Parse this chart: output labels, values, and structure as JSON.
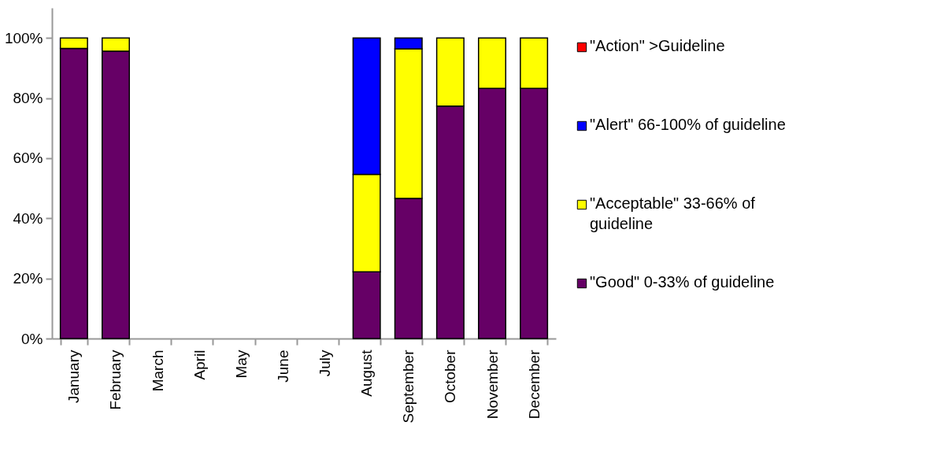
{
  "chart_data": {
    "type": "bar",
    "stacked": true,
    "categories": [
      "January",
      "February",
      "March",
      "April",
      "May",
      "June",
      "July",
      "August",
      "September",
      "October",
      "November",
      "December"
    ],
    "series": [
      {
        "name": "\"Good\" 0-33% of guideline",
        "color": "#660066",
        "values": [
          96.5,
          95.6,
          null,
          null,
          null,
          null,
          null,
          22.2,
          46.6,
          77.3,
          83.2,
          83.2
        ]
      },
      {
        "name": "\"Acceptable\" 33-66% of guideline",
        "color": "#ffff00",
        "values": [
          3.5,
          4.4,
          null,
          null,
          null,
          null,
          null,
          32.4,
          49.8,
          22.7,
          16.8,
          16.8
        ]
      },
      {
        "name": "\"Alert\" 66-100% of guideline",
        "color": "#0000ff",
        "values": [
          null,
          null,
          null,
          null,
          null,
          null,
          null,
          45.4,
          3.6,
          null,
          null,
          null
        ]
      },
      {
        "name": "\"Action\" >Guideline",
        "color": "#ff0000",
        "values": [
          null,
          null,
          null,
          null,
          null,
          null,
          null,
          null,
          null,
          null,
          null,
          null
        ]
      }
    ],
    "ylim": [
      0,
      110
    ],
    "yticks": [
      {
        "value": 0,
        "label": "0%"
      },
      {
        "value": 20,
        "label": "20%"
      },
      {
        "value": 40,
        "label": "40%"
      },
      {
        "value": 60,
        "label": "60%"
      },
      {
        "value": 80,
        "label": "80%"
      },
      {
        "value": 100,
        "label": "100%"
      }
    ],
    "grid": false,
    "legend": "right"
  }
}
